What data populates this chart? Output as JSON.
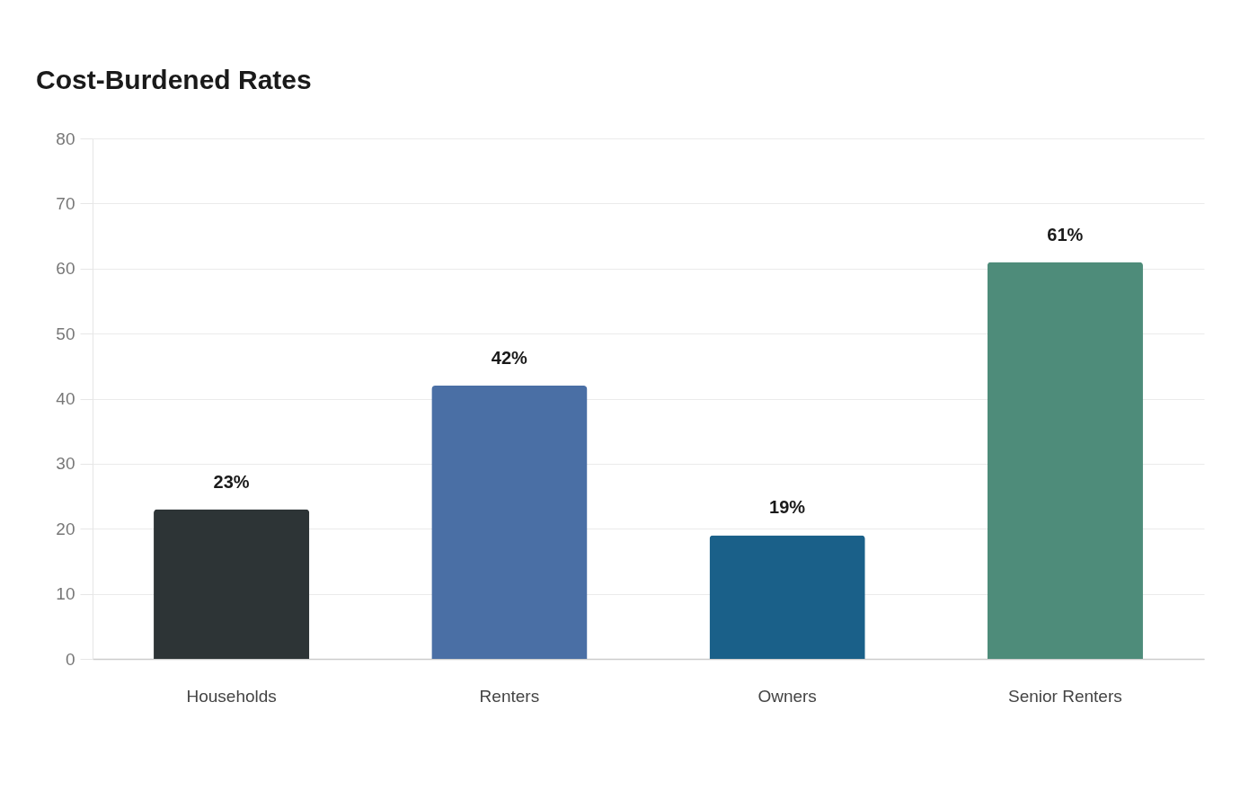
{
  "chart_data": {
    "type": "bar",
    "title": "Cost-Burdened Rates",
    "categories": [
      "Households",
      "Renters",
      "Owners",
      "Senior Renters"
    ],
    "values": [
      23,
      42,
      19,
      61
    ],
    "colors": [
      "#2d3436",
      "#4a6fa5",
      "#1a6089",
      "#4e8c7a"
    ],
    "value_labels": [
      "23%",
      "42%",
      "19%",
      "61%"
    ],
    "ylim": [
      0,
      80
    ],
    "yticks": [
      0,
      10,
      20,
      30,
      40,
      50,
      60,
      70,
      80
    ],
    "grid": true
  }
}
